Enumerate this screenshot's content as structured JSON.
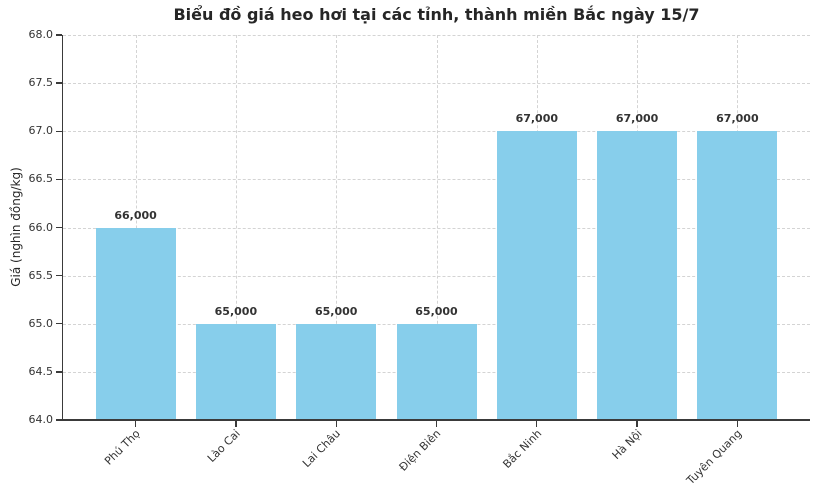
{
  "chart_data": {
    "type": "bar",
    "title": "Biểu đồ giá heo hơi tại các tỉnh, thành miền Bắc ngày 15/7",
    "xlabel": "",
    "ylabel": "Giá (nghìn đồng/kg)",
    "categories": [
      "Phú Thọ",
      "Lào Cai",
      "Lai Châu",
      "Điện Biên",
      "Bắc Ninh",
      "Hà Nội",
      "Tuyên Quang"
    ],
    "values": [
      66000,
      65000,
      65000,
      65000,
      67000,
      67000,
      67000
    ],
    "value_labels": [
      "66,000",
      "65,000",
      "65,000",
      "65,000",
      "67,000",
      "67,000",
      "67,000"
    ],
    "ylim": [
      64.0,
      68.0
    ],
    "ytick_values": [
      64.0,
      64.5,
      65.0,
      65.5,
      66.0,
      66.5,
      67.0,
      67.5,
      68.0
    ],
    "ytick_labels": [
      "64.0",
      "64.5",
      "65.0",
      "65.5",
      "66.0",
      "66.5",
      "67.0",
      "67.5",
      "68.0"
    ],
    "bar_color": "#87CEEB",
    "grid": true,
    "grid_style": "dashed",
    "grid_color": "#d4d4d4",
    "legend": "none"
  }
}
